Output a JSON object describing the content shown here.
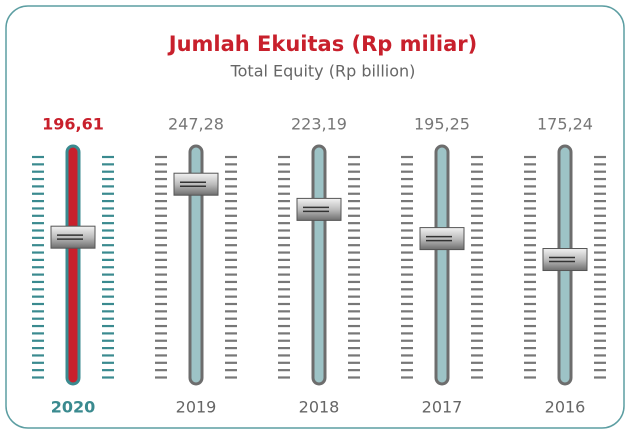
{
  "chart_data": {
    "type": "slider",
    "title": "Jumlah Ekuitas (Rp miliar)",
    "subtitle": "Total Equity (Rp billion)",
    "categories": [
      "2020",
      "2019",
      "2018",
      "2017",
      "2016"
    ],
    "values": [
      196.61,
      247.28,
      223.19,
      195.25,
      175.24
    ],
    "value_labels": [
      "196,61",
      "247,28",
      "223,19",
      "195,25",
      "175,24"
    ],
    "colors": [
      "#c8202c",
      "#9dc3c6",
      "#9dc3c6",
      "#9dc3c6",
      "#9dc3c6"
    ],
    "tick_colors": [
      "#3a8a8f",
      "#777777",
      "#777777",
      "#777777",
      "#777777"
    ],
    "value_label_colors": [
      "#c8202c",
      "#777777",
      "#777777",
      "#777777",
      "#777777"
    ],
    "category_colors": [
      "#3a8a8f",
      "#666666",
      "#666666",
      "#666666",
      "#666666"
    ],
    "ylim": [
      60,
      280
    ]
  }
}
